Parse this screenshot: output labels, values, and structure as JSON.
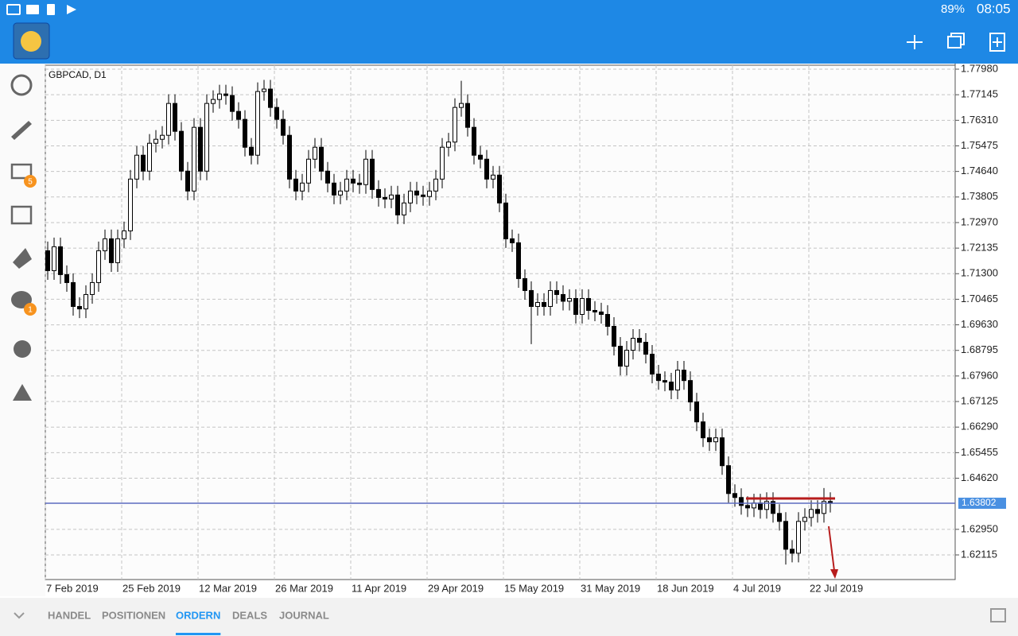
{
  "status_bar": {
    "battery": "89%",
    "time": "08:05"
  },
  "sidebar": {
    "mail_badge": "5",
    "chat_badge": "1"
  },
  "chart_data": {
    "type": "candlestick",
    "title": "GBPCAD, D1",
    "categories": [
      "7 Feb 2019",
      null,
      null,
      null,
      null,
      null,
      null,
      null,
      null,
      null,
      null,
      null,
      "25 Feb 2019",
      null,
      null,
      null,
      null,
      null,
      null,
      null,
      null,
      null,
      null,
      null,
      "12 Mar 2019",
      null,
      null,
      null,
      null,
      null,
      null,
      null,
      null,
      null,
      null,
      null,
      "26 Mar 2019",
      null,
      null,
      null,
      null,
      null,
      null,
      null,
      null,
      null,
      null,
      null,
      "11 Apr 2019",
      null,
      null,
      null,
      null,
      null,
      null,
      null,
      null,
      null,
      null,
      null,
      "29 Apr 2019",
      null,
      null,
      null,
      null,
      null,
      null,
      null,
      null,
      null,
      null,
      null,
      "15 May 2019",
      null,
      null,
      null,
      null,
      null,
      null,
      null,
      null,
      null,
      null,
      null,
      "31 May 2019",
      null,
      null,
      null,
      null,
      null,
      null,
      null,
      null,
      null,
      null,
      null,
      "18 Jun 2019",
      null,
      null,
      null,
      null,
      null,
      null,
      null,
      null,
      null,
      null,
      null,
      "4 Jul 2019",
      null,
      null,
      null,
      null,
      null,
      null,
      null,
      null,
      null,
      null,
      null,
      "22 Jul 2019",
      null,
      null,
      null
    ],
    "open": [
      1.7205,
      1.714,
      1.7218,
      1.7127,
      1.7101,
      1.7023,
      1.7015,
      1.7062,
      1.7101,
      1.7205,
      1.7244,
      1.7166,
      1.7244,
      1.727,
      1.7439,
      1.7517,
      1.7465,
      1.7556,
      1.7569,
      1.7582,
      1.7686,
      1.7595,
      1.7465,
      1.74,
      1.7608,
      1.7465,
      1.7686,
      1.7699,
      1.7717,
      1.7712,
      1.766,
      1.7634,
      1.7543,
      1.7517,
      1.7725,
      1.7733,
      1.7673,
      1.7634,
      1.7582,
      1.7439,
      1.74,
      1.7426,
      1.7504,
      1.7543,
      1.7465,
      1.7426,
      1.7387,
      1.74,
      1.7439,
      1.7426,
      1.7421,
      1.7504,
      1.7405,
      1.7379,
      1.7374,
      1.7387,
      1.7322,
      1.7361,
      1.74,
      1.7387,
      1.7382,
      1.74,
      1.7439,
      1.7543,
      1.756,
      1.7673,
      1.7686,
      1.7608,
      1.7517,
      1.7504,
      1.7439,
      1.7452,
      1.7361,
      1.7244,
      1.7231,
      1.7114,
      1.7075,
      1.7023,
      1.7036,
      1.7023,
      1.7075,
      1.7062,
      1.704,
      1.7049,
      1.6997,
      1.7049,
      1.701,
      1.7005,
      1.6997,
      1.6958,
      1.6893,
      1.6828,
      1.688,
      1.6919,
      1.6906,
      1.6867,
      1.6802,
      1.6781,
      1.6776,
      1.675,
      1.6815,
      1.6781,
      1.6711,
      1.6646,
      1.6594,
      1.6581,
      1.6594,
      1.6503,
      1.6412,
      1.6399,
      1.6373,
      1.6365,
      1.6381,
      1.636,
      1.6386,
      1.6347,
      1.6321,
      1.623,
      1.6217,
      1.6321,
      1.6334,
      1.636,
      1.6347,
      1.6386
    ],
    "high": [
      1.7235,
      1.7248,
      1.7248,
      1.7157,
      1.7131,
      1.7053,
      1.7092,
      1.7131,
      1.7235,
      1.7274,
      1.7274,
      1.7274,
      1.73,
      1.7469,
      1.7547,
      1.7547,
      1.7586,
      1.7599,
      1.7612,
      1.7716,
      1.7716,
      1.7625,
      1.7495,
      1.7638,
      1.7638,
      1.7716,
      1.7729,
      1.7747,
      1.7747,
      1.7742,
      1.769,
      1.7664,
      1.7573,
      1.7755,
      1.7763,
      1.7763,
      1.7703,
      1.7664,
      1.7612,
      1.7469,
      1.7456,
      1.7534,
      1.7573,
      1.7573,
      1.7495,
      1.7456,
      1.743,
      1.7469,
      1.7469,
      1.7456,
      1.7534,
      1.7534,
      1.7435,
      1.7409,
      1.7417,
      1.7417,
      1.7391,
      1.743,
      1.743,
      1.7417,
      1.743,
      1.7469,
      1.7573,
      1.759,
      1.7703,
      1.776,
      1.7716,
      1.7638,
      1.7547,
      1.7534,
      1.7482,
      1.7482,
      1.7391,
      1.7274,
      1.7261,
      1.7144,
      1.7105,
      1.7066,
      1.7066,
      1.7105,
      1.7105,
      1.7092,
      1.7079,
      1.7079,
      1.7079,
      1.7079,
      1.704,
      1.7035,
      1.7027,
      1.6988,
      1.6923,
      1.691,
      1.6949,
      1.6949,
      1.6936,
      1.6897,
      1.6832,
      1.6811,
      1.6806,
      1.6845,
      1.6845,
      1.6811,
      1.6741,
      1.6676,
      1.6624,
      1.6624,
      1.6624,
      1.6533,
      1.6442,
      1.6429,
      1.6403,
      1.6411,
      1.6411,
      1.6416,
      1.6416,
      1.6377,
      1.6351,
      1.626,
      1.6351,
      1.6364,
      1.639,
      1.639,
      1.643,
      1.6416
    ],
    "low": [
      1.711,
      1.711,
      1.7097,
      1.7071,
      1.6993,
      1.6985,
      1.6985,
      1.7032,
      1.7071,
      1.7175,
      1.7136,
      1.7136,
      1.7214,
      1.724,
      1.7409,
      1.7435,
      1.7435,
      1.7526,
      1.7539,
      1.7552,
      1.7565,
      1.7435,
      1.737,
      1.737,
      1.7435,
      1.7435,
      1.7656,
      1.7669,
      1.7682,
      1.763,
      1.7604,
      1.7513,
      1.7487,
      1.7487,
      1.7695,
      1.7643,
      1.7604,
      1.7552,
      1.7409,
      1.737,
      1.737,
      1.7396,
      1.7474,
      1.7435,
      1.7396,
      1.7357,
      1.7357,
      1.737,
      1.7396,
      1.7391,
      1.7391,
      1.7375,
      1.7349,
      1.7344,
      1.7344,
      1.7292,
      1.7292,
      1.7331,
      1.7357,
      1.7352,
      1.7352,
      1.737,
      1.7409,
      1.7513,
      1.753,
      1.7643,
      1.7578,
      1.7487,
      1.7474,
      1.7409,
      1.7409,
      1.7331,
      1.7214,
      1.7201,
      1.7084,
      1.7045,
      1.69,
      1.6993,
      1.6993,
      1.6993,
      1.7032,
      1.701,
      1.701,
      1.6967,
      1.6967,
      1.698,
      1.6975,
      1.6967,
      1.6928,
      1.6863,
      1.6798,
      1.6798,
      1.685,
      1.6876,
      1.6837,
      1.6772,
      1.6751,
      1.6746,
      1.672,
      1.672,
      1.6751,
      1.6681,
      1.6616,
      1.6564,
      1.6551,
      1.6551,
      1.6473,
      1.6382,
      1.6369,
      1.6343,
      1.6335,
      1.6335,
      1.633,
      1.633,
      1.6317,
      1.6291,
      1.618,
      1.6187,
      1.6187,
      1.6291,
      1.6304,
      1.6317,
      1.6317,
      1.635
    ],
    "close": [
      1.714,
      1.7218,
      1.7127,
      1.7101,
      1.7023,
      1.7015,
      1.7062,
      1.7101,
      1.7205,
      1.7244,
      1.7166,
      1.7244,
      1.727,
      1.7439,
      1.7517,
      1.7465,
      1.7556,
      1.7569,
      1.7582,
      1.7686,
      1.7595,
      1.7465,
      1.74,
      1.7608,
      1.7465,
      1.7686,
      1.7699,
      1.7717,
      1.7712,
      1.766,
      1.7634,
      1.7543,
      1.7517,
      1.7725,
      1.7733,
      1.7673,
      1.7634,
      1.7582,
      1.7439,
      1.74,
      1.7426,
      1.7504,
      1.7543,
      1.7465,
      1.7426,
      1.7387,
      1.74,
      1.7439,
      1.7426,
      1.7421,
      1.7504,
      1.7405,
      1.7379,
      1.7374,
      1.7387,
      1.7322,
      1.7361,
      1.74,
      1.7387,
      1.7382,
      1.74,
      1.7439,
      1.7543,
      1.756,
      1.7673,
      1.7686,
      1.7608,
      1.7517,
      1.7504,
      1.7439,
      1.7452,
      1.7361,
      1.7244,
      1.7231,
      1.7114,
      1.7075,
      1.7023,
      1.7036,
      1.7023,
      1.7075,
      1.7062,
      1.704,
      1.7049,
      1.6997,
      1.7049,
      1.701,
      1.7005,
      1.6997,
      1.6958,
      1.6893,
      1.6828,
      1.688,
      1.6919,
      1.6906,
      1.6867,
      1.6802,
      1.6781,
      1.6776,
      1.675,
      1.6815,
      1.6781,
      1.6711,
      1.6646,
      1.6594,
      1.6581,
      1.6594,
      1.6503,
      1.6412,
      1.6399,
      1.6373,
      1.6365,
      1.6381,
      1.636,
      1.6386,
      1.6347,
      1.6321,
      1.623,
      1.6217,
      1.6321,
      1.6334,
      1.636,
      1.6347,
      1.6386,
      1.638
    ],
    "up_color": "#ffffff",
    "down_color": "#000000",
    "ylim": [
      1.6131,
      1.7811
    ],
    "yticks": [
      {
        "value": 1.7798,
        "label": "1.77980"
      },
      {
        "value": 1.77145,
        "label": "1.77145"
      },
      {
        "value": 1.7631,
        "label": "1.76310"
      },
      {
        "value": 1.75475,
        "label": "1.75475"
      },
      {
        "value": 1.7464,
        "label": "1.74640"
      },
      {
        "value": 1.73805,
        "label": "1.73805"
      },
      {
        "value": 1.7297,
        "label": "1.72970"
      },
      {
        "value": 1.72135,
        "label": "1.72135"
      },
      {
        "value": 1.713,
        "label": "1.71300"
      },
      {
        "value": 1.70465,
        "label": "1.70465"
      },
      {
        "value": 1.6963,
        "label": "1.69630"
      },
      {
        "value": 1.68795,
        "label": "1.68795"
      },
      {
        "value": 1.6796,
        "label": "1.67960"
      },
      {
        "value": 1.67125,
        "label": "1.67125"
      },
      {
        "value": 1.6629,
        "label": "1.66290"
      },
      {
        "value": 1.65455,
        "label": "1.65455"
      },
      {
        "value": 1.6462,
        "label": "1.64620"
      },
      {
        "value": 1.6295,
        "label": "1.62950"
      },
      {
        "value": 1.62115,
        "label": "1.62115"
      }
    ],
    "grid": true,
    "current_price": {
      "value": 1.63802,
      "label": "1.63802"
    }
  },
  "tabs": [
    "HANDEL",
    "POSITIONEN",
    "ORDERN",
    "DEALS",
    "JOURNAL"
  ],
  "active_tab": 2
}
